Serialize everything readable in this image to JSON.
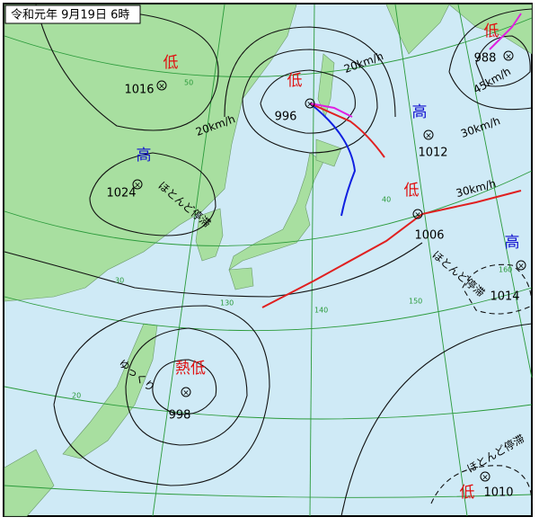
{
  "header": {
    "title": "令和元年 9月19日 6時"
  },
  "systems": [
    {
      "label": "低",
      "pressure": 1016,
      "motion": "20km/h"
    },
    {
      "label": "高",
      "pressure": 1024,
      "motion": "ほとんど停滞"
    },
    {
      "label": "低",
      "pressure": 996,
      "motion": "20km/h"
    },
    {
      "label": "高",
      "pressure": 1012,
      "motion": "30km/h"
    },
    {
      "label": "低",
      "pressure": 988,
      "motion": "45km/h"
    },
    {
      "label": "低",
      "pressure": 1006,
      "motion": "30km/h"
    },
    {
      "label": "高",
      "pressure": 1014,
      "motion": "ほとんど停滞"
    },
    {
      "label": "熱低",
      "pressure": 998,
      "motion": "ゆっくり"
    },
    {
      "label": "低",
      "pressure": 1010,
      "motion": "ほとんど停滞"
    }
  ],
  "grid_labels": [
    50,
    40,
    30,
    20,
    130,
    140,
    150,
    160
  ]
}
